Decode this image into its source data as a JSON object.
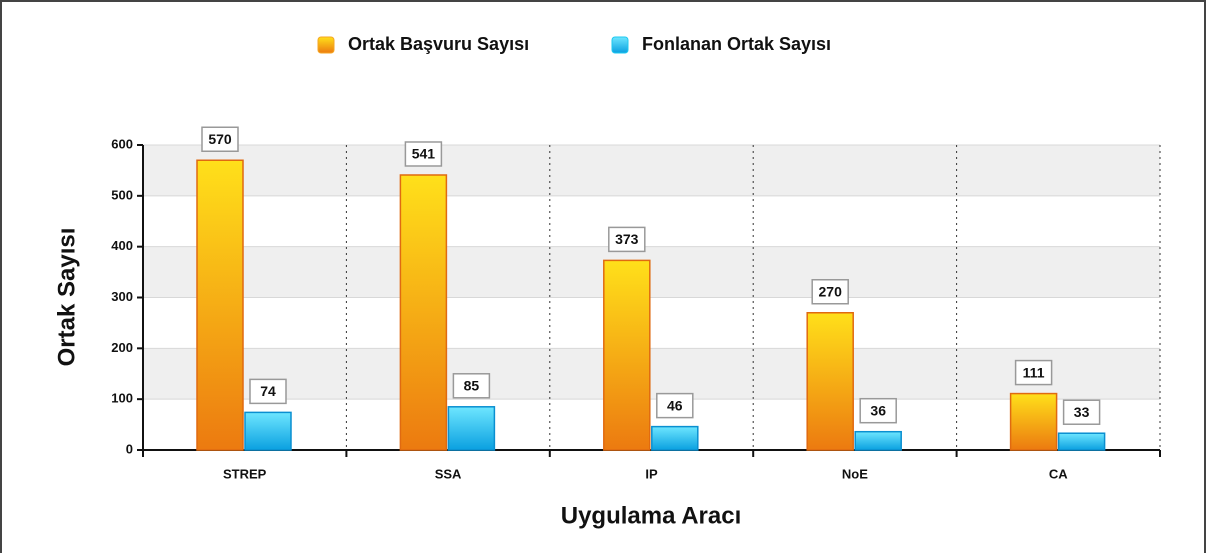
{
  "chart_data": {
    "type": "bar",
    "categories": [
      "STREP",
      "SSA",
      "IP",
      "NoE",
      "CA"
    ],
    "series": [
      {
        "name": "Ortak Başvuru Sayısı",
        "color": "#f5a623",
        "values": [
          570,
          541,
          373,
          270,
          111
        ]
      },
      {
        "name": "Fonlanan Ortak Sayısı",
        "color": "#1ec8f0",
        "values": [
          74,
          85,
          46,
          36,
          33
        ]
      }
    ],
    "xlabel": "Uygulama Aracı",
    "ylabel": "Ortak Sayısı",
    "ylim": [
      0,
      600
    ],
    "yticks": [
      0,
      100,
      200,
      300,
      400,
      500,
      600
    ],
    "grid": true,
    "legend": "top"
  }
}
